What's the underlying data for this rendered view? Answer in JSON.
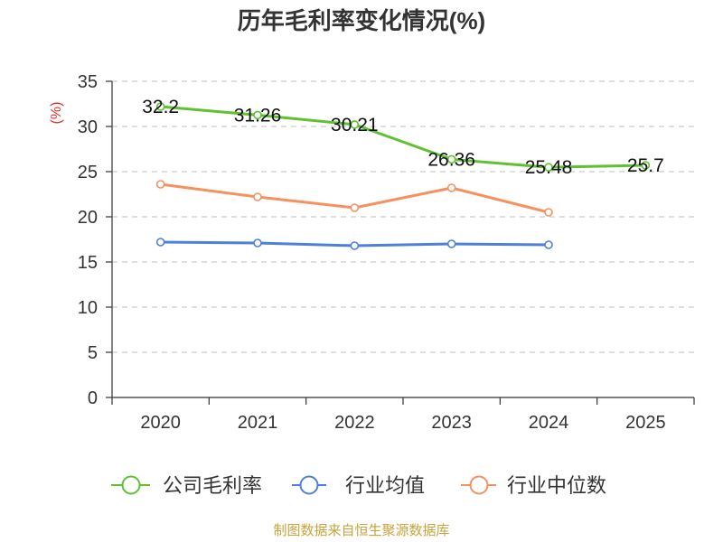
{
  "chart_data": {
    "type": "line",
    "title": "历年毛利率变化情况(%)",
    "xlabel": "",
    "ylabel": "(%)",
    "categories": [
      "2020",
      "2021",
      "2022",
      "2023",
      "2024",
      "2025"
    ],
    "ylim": [
      0,
      35
    ],
    "yticks": [
      "0",
      "5",
      "10",
      "15",
      "20",
      "25",
      "30",
      "35"
    ],
    "grid": true,
    "legend": "bottom-center",
    "series": [
      {
        "name": "公司毛利率",
        "color": "#5ec230",
        "values": [
          32.2,
          31.26,
          30.21,
          26.36,
          25.48,
          25.7
        ],
        "labels": [
          "32.2",
          "31.26",
          "30.21",
          "26.36",
          "25.48",
          "25.7"
        ]
      },
      {
        "name": "行业均值",
        "color": "#4d80da",
        "values": [
          17.2,
          17.1,
          16.8,
          17.0,
          16.9,
          null
        ]
      },
      {
        "name": "行业中位数",
        "color": "#f5915f",
        "values": [
          23.6,
          22.2,
          21.0,
          23.2,
          20.5,
          null
        ]
      }
    ]
  },
  "footer": "制图数据来自恒生聚源数据库",
  "colors": {
    "title": "#333333",
    "ylabel": "#e0302a",
    "footer": "#c9a23a",
    "grid": "#cccccc",
    "axis": "#333333"
  }
}
